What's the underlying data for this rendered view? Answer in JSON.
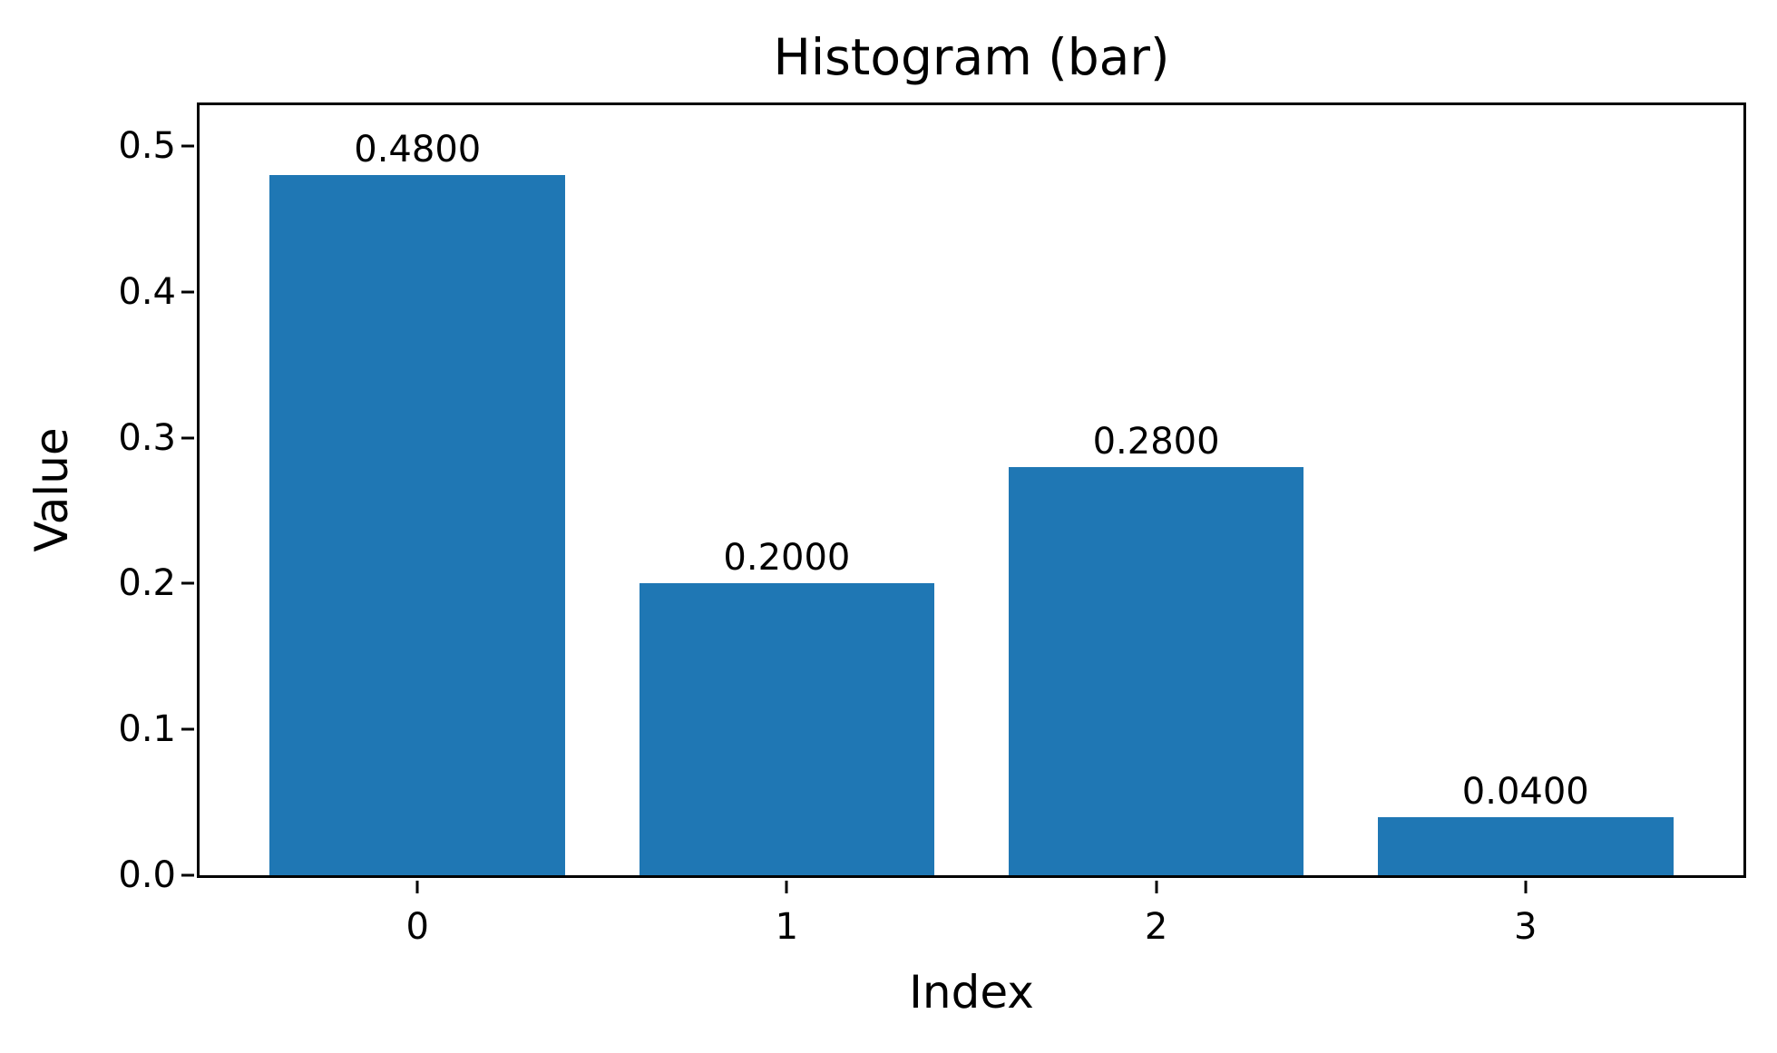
{
  "chart_data": {
    "type": "bar",
    "title": "Histogram (bar)",
    "xlabel": "Index",
    "ylabel": "Value",
    "categories": [
      "0",
      "1",
      "2",
      "3"
    ],
    "values": [
      0.48,
      0.2,
      0.28,
      0.04
    ],
    "bar_labels": [
      "0.4800",
      "0.2000",
      "0.2800",
      "0.0400"
    ],
    "ytick_values": [
      0.0,
      0.1,
      0.2,
      0.3,
      0.4,
      0.5
    ],
    "ytick_labels": [
      "0.0",
      "0.1",
      "0.2",
      "0.3",
      "0.4",
      "0.5"
    ],
    "xlim": [
      -0.59,
      3.59
    ],
    "ylim": [
      0,
      0.528
    ],
    "bar_width_units": 0.8,
    "bar_color": "#1f77b4",
    "axis_color": "#000000",
    "background_color": "#ffffff",
    "grid": false,
    "legend": null
  }
}
